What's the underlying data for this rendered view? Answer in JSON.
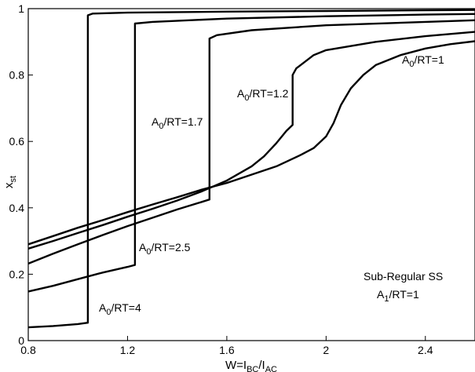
{
  "chart_data": {
    "type": "line",
    "title": "",
    "xlim": [
      0.8,
      2.6
    ],
    "ylim": [
      0,
      1
    ],
    "x_ticks": [
      "0.8",
      "1.2",
      "1.6",
      "2",
      "2.4"
    ],
    "y_ticks": [
      "0",
      "0.2",
      "0.4",
      "0.6",
      "0.8",
      "1"
    ],
    "xlabel": {
      "main": "W=I",
      "sub1": "BC",
      "mid": "/I",
      "sub2": "AC"
    },
    "ylabel": {
      "main": "x",
      "sub": "st"
    },
    "grid": false,
    "series": [
      {
        "name": "A0/RT=4",
        "label": {
          "pre": "A",
          "sub": "0",
          "post": "/RT=4"
        },
        "points": [
          [
            0.8,
            0.04
          ],
          [
            0.9,
            0.044
          ],
          [
            1.0,
            0.05
          ],
          [
            1.04,
            0.054
          ],
          [
            1.04,
            0.98
          ],
          [
            1.06,
            0.985
          ],
          [
            1.2,
            0.988
          ],
          [
            1.6,
            0.991
          ],
          [
            2.0,
            0.993
          ],
          [
            2.4,
            0.995
          ],
          [
            2.6,
            0.996
          ]
        ]
      },
      {
        "name": "A0/RT=2.5",
        "label": {
          "pre": "A",
          "sub": "0",
          "post": "/RT=2.5"
        },
        "points": [
          [
            0.8,
            0.148
          ],
          [
            0.9,
            0.165
          ],
          [
            1.0,
            0.185
          ],
          [
            1.1,
            0.205
          ],
          [
            1.2,
            0.222
          ],
          [
            1.23,
            0.228
          ],
          [
            1.23,
            0.955
          ],
          [
            1.3,
            0.96
          ],
          [
            1.6,
            0.97
          ],
          [
            2.0,
            0.977
          ],
          [
            2.4,
            0.982
          ],
          [
            2.6,
            0.984
          ]
        ]
      },
      {
        "name": "A0/RT=1.7",
        "label": {
          "pre": "A",
          "sub": "0",
          "post": "/RT=1.7"
        },
        "points": [
          [
            0.8,
            0.232
          ],
          [
            0.9,
            0.262
          ],
          [
            1.0,
            0.29
          ],
          [
            1.1,
            0.318
          ],
          [
            1.2,
            0.345
          ],
          [
            1.3,
            0.37
          ],
          [
            1.4,
            0.395
          ],
          [
            1.5,
            0.418
          ],
          [
            1.53,
            0.425
          ],
          [
            1.53,
            0.91
          ],
          [
            1.56,
            0.92
          ],
          [
            1.7,
            0.935
          ],
          [
            2.0,
            0.95
          ],
          [
            2.4,
            0.96
          ],
          [
            2.6,
            0.965
          ]
        ]
      },
      {
        "name": "A0/RT=1.2",
        "label": {
          "pre": "A",
          "sub": "0",
          "post": "/RT=1.2"
        },
        "points": [
          [
            0.8,
            0.277
          ],
          [
            0.9,
            0.3
          ],
          [
            1.0,
            0.324
          ],
          [
            1.1,
            0.348
          ],
          [
            1.2,
            0.373
          ],
          [
            1.3,
            0.397
          ],
          [
            1.4,
            0.422
          ],
          [
            1.5,
            0.45
          ],
          [
            1.6,
            0.482
          ],
          [
            1.7,
            0.525
          ],
          [
            1.75,
            0.555
          ],
          [
            1.8,
            0.595
          ],
          [
            1.84,
            0.632
          ],
          [
            1.865,
            0.65
          ],
          [
            1.865,
            0.8
          ],
          [
            1.88,
            0.82
          ],
          [
            1.95,
            0.86
          ],
          [
            2.0,
            0.875
          ],
          [
            2.2,
            0.9
          ],
          [
            2.4,
            0.917
          ],
          [
            2.6,
            0.93
          ]
        ]
      },
      {
        "name": "A0/RT=1",
        "label": {
          "pre": "A",
          "sub": "0",
          "post": "/RT=1"
        },
        "points": [
          [
            0.8,
            0.29
          ],
          [
            0.9,
            0.315
          ],
          [
            1.0,
            0.34
          ],
          [
            1.1,
            0.363
          ],
          [
            1.2,
            0.387
          ],
          [
            1.3,
            0.41
          ],
          [
            1.4,
            0.432
          ],
          [
            1.5,
            0.455
          ],
          [
            1.6,
            0.475
          ],
          [
            1.7,
            0.5
          ],
          [
            1.8,
            0.525
          ],
          [
            1.9,
            0.56
          ],
          [
            1.95,
            0.58
          ],
          [
            2.0,
            0.615
          ],
          [
            2.03,
            0.655
          ],
          [
            2.06,
            0.71
          ],
          [
            2.1,
            0.76
          ],
          [
            2.15,
            0.8
          ],
          [
            2.2,
            0.83
          ],
          [
            2.3,
            0.86
          ],
          [
            2.4,
            0.88
          ],
          [
            2.5,
            0.893
          ],
          [
            2.6,
            0.902
          ]
        ]
      }
    ],
    "annotations": [
      {
        "lines": [
          {
            "pre": "Sub-Regular SS",
            "sub": "",
            "post": ""
          },
          {
            "pre": "A",
            "sub": "1",
            "post": "/RT=1"
          }
        ]
      }
    ]
  }
}
